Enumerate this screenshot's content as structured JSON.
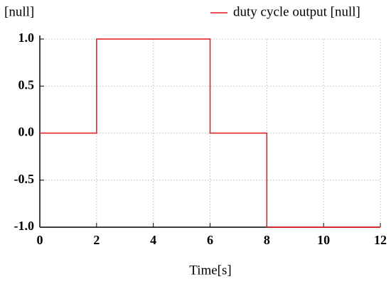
{
  "chart_data": {
    "type": "line",
    "y_label": "[null]",
    "x_label": "Time[s]",
    "x": [
      0,
      2,
      2,
      6,
      6,
      8,
      8,
      12
    ],
    "series": [
      {
        "name": "duty cycle output [null]",
        "color": "#e8141c",
        "values": [
          0,
          0,
          1,
          1,
          0,
          0,
          -1,
          -1
        ]
      }
    ],
    "xlim": [
      0,
      12
    ],
    "xticks": [
      0,
      2,
      4,
      6,
      8,
      10,
      12
    ],
    "ylim": [
      -1,
      1
    ],
    "yticks": [
      {
        "value": 1,
        "label": "1.0"
      },
      {
        "value": 0.5,
        "label": "0.5"
      },
      {
        "value": 0,
        "label": "0.0"
      },
      {
        "value": -0.5,
        "label": "-0.5"
      },
      {
        "value": -1,
        "label": "-1.0"
      }
    ],
    "grid": true,
    "legend": "top-right"
  }
}
